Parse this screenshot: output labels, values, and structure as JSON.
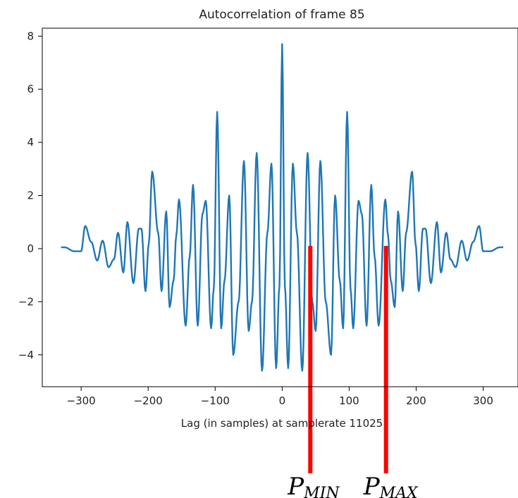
{
  "chart_data": {
    "type": "line",
    "title": "Autocorrelation of frame 85",
    "xlabel": "Lag (in samples) at samplerate 11025",
    "ylabel": "",
    "xlim": [
      -358,
      352
    ],
    "ylim": [
      -5.2,
      8.3
    ],
    "xticks": [
      -300,
      -200,
      -100,
      0,
      100,
      200,
      300
    ],
    "xtick_labels": [
      "−300",
      "−200",
      "−100",
      "0",
      "100",
      "200",
      "300"
    ],
    "yticks": [
      -4,
      -2,
      0,
      2,
      4,
      6,
      8
    ],
    "ytick_labels": [
      "−4",
      "−2",
      "0",
      "2",
      "4",
      "6",
      "8"
    ],
    "grid": false,
    "color": "#1f77b4",
    "x_range": [
      -330,
      330
    ],
    "x_step": 1,
    "peaks": [
      [
        0,
        7.7
      ],
      [
        -4,
        -1.4
      ],
      [
        4,
        -1.4
      ],
      [
        -9,
        -4.5
      ],
      [
        9,
        -4.5
      ],
      [
        -16,
        3.2
      ],
      [
        16,
        3.2
      ],
      [
        -22,
        0.6
      ],
      [
        22,
        0.6
      ],
      [
        -30,
        -4.6
      ],
      [
        30,
        -4.6
      ],
      [
        -38,
        3.6
      ],
      [
        38,
        3.6
      ],
      [
        -45,
        -2.0
      ],
      [
        45,
        -2.0
      ],
      [
        -50,
        -3.1
      ],
      [
        50,
        -3.1
      ],
      [
        -57,
        3.3
      ],
      [
        57,
        3.3
      ],
      [
        -65,
        -2.0
      ],
      [
        65,
        -2.0
      ],
      [
        -73,
        -4.0
      ],
      [
        73,
        -4.0
      ],
      [
        -79,
        2.0
      ],
      [
        79,
        2.0
      ],
      [
        -86,
        -1.2
      ],
      [
        86,
        -1.2
      ],
      [
        -91,
        -3.0
      ],
      [
        91,
        -3.0
      ],
      [
        -97,
        5.15
      ],
      [
        97,
        5.15
      ],
      [
        -102,
        -1.5
      ],
      [
        102,
        -1.5
      ],
      [
        -106,
        -3.0
      ],
      [
        106,
        -3.0
      ],
      [
        -114,
        1.8
      ],
      [
        114,
        1.8
      ],
      [
        -119,
        1.3
      ],
      [
        119,
        1.3
      ],
      [
        -126,
        -2.9
      ],
      [
        126,
        -2.9
      ],
      [
        -133,
        2.4
      ],
      [
        133,
        2.4
      ],
      [
        -138,
        -0.3
      ],
      [
        138,
        -0.3
      ],
      [
        -144,
        -2.9
      ],
      [
        144,
        -2.9
      ],
      [
        -154,
        1.85
      ],
      [
        154,
        1.85
      ],
      [
        -158,
        0.5
      ],
      [
        158,
        0.5
      ],
      [
        -162,
        -1.2
      ],
      [
        162,
        -1.2
      ],
      [
        -168,
        -2.2
      ],
      [
        168,
        -2.2
      ],
      [
        -173,
        1.4
      ],
      [
        173,
        1.4
      ],
      [
        -180,
        -1.6
      ],
      [
        180,
        -1.6
      ],
      [
        -185,
        0.6
      ],
      [
        185,
        0.6
      ],
      [
        -194,
        2.9
      ],
      [
        194,
        2.9
      ],
      [
        -199,
        0.2
      ],
      [
        199,
        0.2
      ],
      [
        -204,
        -1.6
      ],
      [
        204,
        -1.6
      ],
      [
        -210,
        0.75
      ],
      [
        210,
        0.75
      ],
      [
        -214,
        0.75
      ],
      [
        214,
        0.75
      ],
      [
        -222,
        -1.3
      ],
      [
        222,
        -1.3
      ],
      [
        -231,
        1.0
      ],
      [
        231,
        1.0
      ],
      [
        -237,
        -0.9
      ],
      [
        237,
        -0.9
      ],
      [
        -245,
        0.6
      ],
      [
        245,
        0.6
      ],
      [
        -251,
        -0.4
      ],
      [
        251,
        -0.4
      ],
      [
        -259,
        -0.7
      ],
      [
        259,
        -0.7
      ],
      [
        -268,
        0.3
      ],
      [
        268,
        0.3
      ],
      [
        -276,
        -0.45
      ],
      [
        276,
        -0.45
      ],
      [
        -285,
        0.25
      ],
      [
        285,
        0.25
      ],
      [
        -294,
        0.85
      ],
      [
        294,
        0.85
      ],
      [
        -300,
        -0.1
      ],
      [
        300,
        -0.1
      ],
      [
        -310,
        -0.1
      ],
      [
        310,
        -0.1
      ],
      [
        -325,
        0.05
      ],
      [
        325,
        0.05
      ]
    ],
    "annotations": [
      {
        "label": "P",
        "sub": "MIN",
        "x": 42,
        "y": 0.1
      },
      {
        "label": "P",
        "sub": "MAX",
        "x": 155,
        "y": 0.1
      }
    ],
    "annotation_color": "#ff0000"
  }
}
